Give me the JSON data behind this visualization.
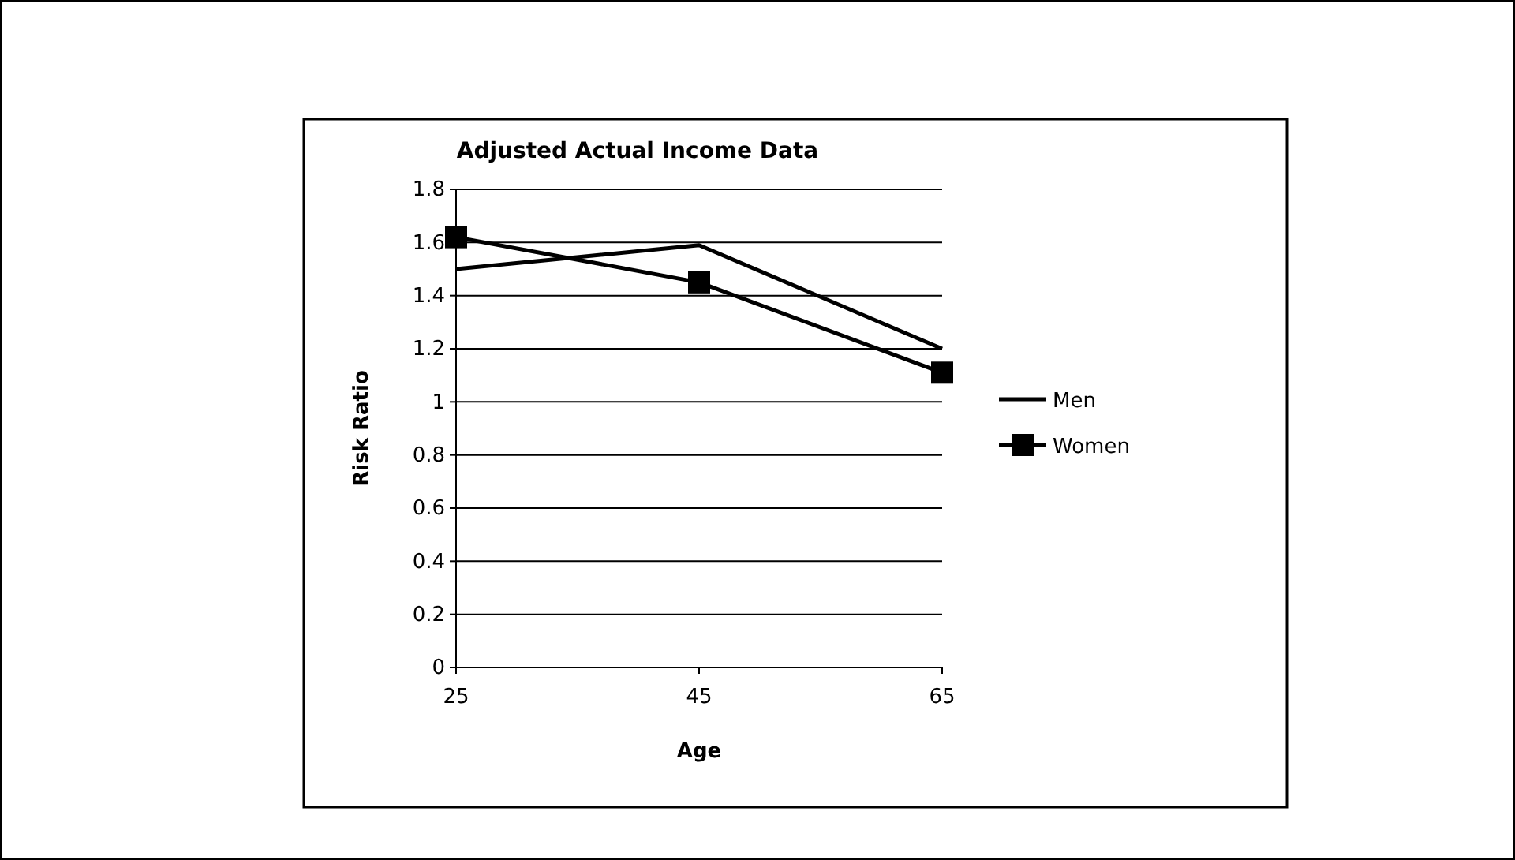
{
  "chart_data": {
    "type": "line",
    "title": "Adjusted Actual Income Data",
    "xlabel": "Age",
    "ylabel": "Risk Ratio",
    "categories": [
      "25",
      "45",
      "65"
    ],
    "series": [
      {
        "name": "Men",
        "color": "#000000",
        "values": [
          1.5,
          1.59,
          1.2
        ],
        "marker": "none"
      },
      {
        "name": "Women",
        "color": "#000000",
        "values": [
          1.62,
          1.45,
          1.11
        ],
        "marker": "square"
      }
    ],
    "ylim": [
      0,
      1.8
    ],
    "yticks": [
      0,
      0.2,
      0.4,
      0.6,
      0.8,
      1,
      1.2,
      1.4,
      1.6,
      1.8
    ],
    "grid": "y",
    "legend": "right"
  }
}
